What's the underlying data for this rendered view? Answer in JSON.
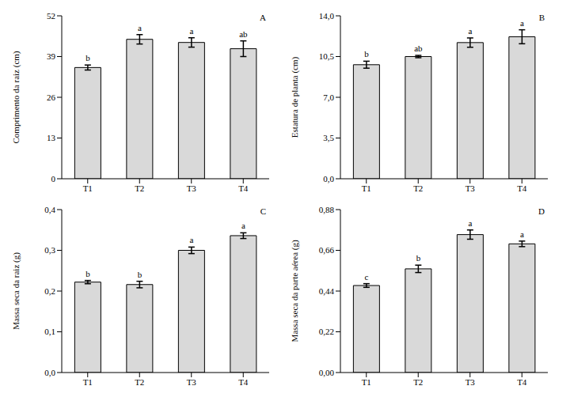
{
  "chart_data": [
    {
      "type": "bar",
      "title": "A",
      "y_label": "Comprimento da raiz (cm)",
      "categories": [
        "T1",
        "T2",
        "T3",
        "T4"
      ],
      "values": [
        35.5,
        44.5,
        43.5,
        41.5
      ],
      "error": [
        0.8,
        1.5,
        1.5,
        2.5
      ],
      "annotations": [
        "b",
        "a",
        "a",
        "ab"
      ],
      "color": "#d9d9d9",
      "ylim": [
        0,
        52
      ],
      "yticks": [
        0,
        13,
        26,
        39,
        52
      ],
      "grid": false
    },
    {
      "type": "bar",
      "title": "B",
      "y_label": "Estatura de planta (cm)",
      "categories": [
        "T1",
        "T2",
        "T3",
        "T4"
      ],
      "values": [
        9.8,
        10.5,
        11.7,
        12.2
      ],
      "error": [
        0.3,
        0.1,
        0.4,
        0.6
      ],
      "annotations": [
        "b",
        "ab",
        "a",
        "a"
      ],
      "color": "#d9d9d9",
      "ylim": [
        0,
        14
      ],
      "yticks": [
        {
          "value": 0,
          "label": "0,0"
        },
        {
          "value": 3.5,
          "label": "3,5"
        },
        {
          "value": 7,
          "label": "7,0"
        },
        {
          "value": 10.5,
          "label": "10,5"
        },
        {
          "value": 14,
          "label": "14,0"
        }
      ],
      "grid": false
    },
    {
      "type": "bar",
      "title": "C",
      "y_label": "Massa seca da raiz (g)",
      "categories": [
        "T1",
        "T2",
        "T3",
        "T4"
      ],
      "values": [
        0.222,
        0.216,
        0.3,
        0.336
      ],
      "error": [
        0.004,
        0.008,
        0.008,
        0.007
      ],
      "annotations": [
        "b",
        "b",
        "a",
        "a"
      ],
      "color": "#d9d9d9",
      "ylim": [
        0,
        0.4
      ],
      "yticks": [
        {
          "value": 0,
          "label": "0,0"
        },
        {
          "value": 0.1,
          "label": "0,1"
        },
        {
          "value": 0.2,
          "label": "0,2"
        },
        {
          "value": 0.3,
          "label": "0,3"
        },
        {
          "value": 0.4,
          "label": "0,4"
        }
      ],
      "grid": false
    },
    {
      "type": "bar",
      "title": "D",
      "y_label": "Massa seca da parte aérea (g)",
      "categories": [
        "T1",
        "T2",
        "T3",
        "T4"
      ],
      "values": [
        0.47,
        0.56,
        0.745,
        0.695
      ],
      "error": [
        0.01,
        0.02,
        0.025,
        0.015
      ],
      "annotations": [
        "c",
        "b",
        "a",
        "a"
      ],
      "color": "#d9d9d9",
      "ylim": [
        0,
        0.88
      ],
      "yticks": [
        {
          "value": 0,
          "label": "0,00"
        },
        {
          "value": 0.22,
          "label": "0,22"
        },
        {
          "value": 0.44,
          "label": "0,44"
        },
        {
          "value": 0.66,
          "label": "0,66"
        },
        {
          "value": 0.88,
          "label": "0,88"
        }
      ],
      "grid": false
    }
  ]
}
